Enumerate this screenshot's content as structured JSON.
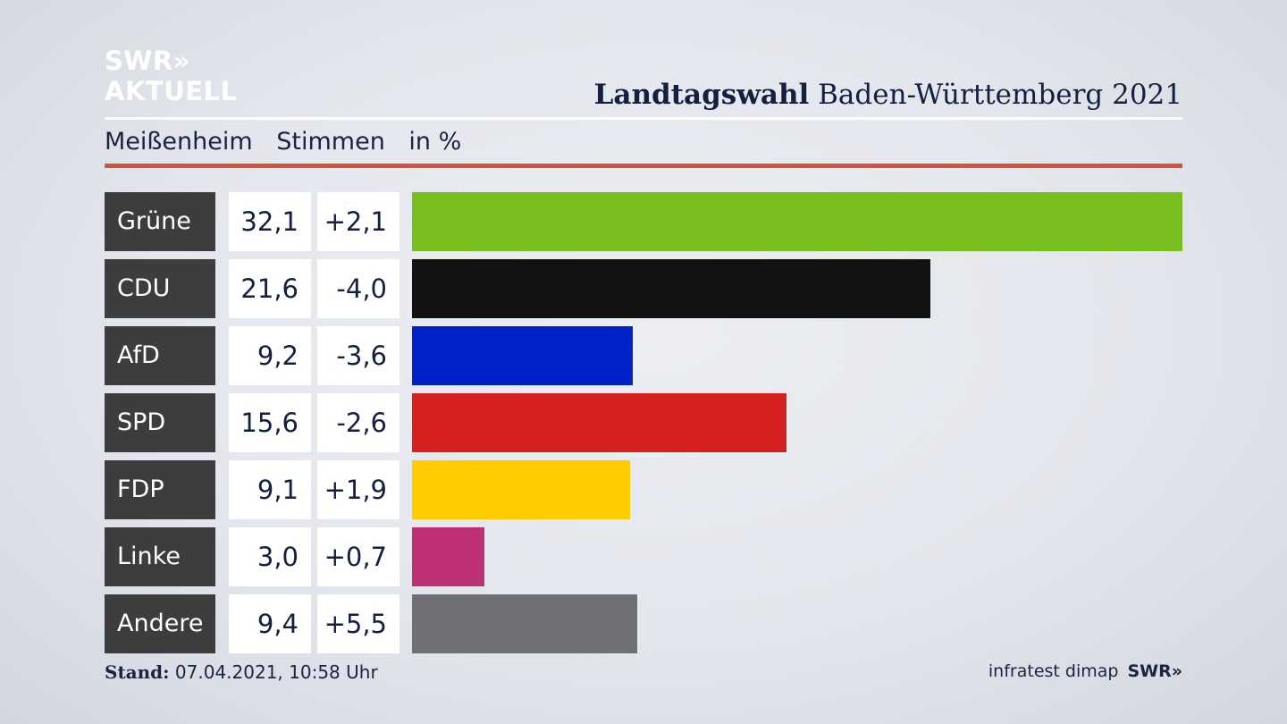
{
  "brand": {
    "line1": "SWR»",
    "line2": "AKTUELL"
  },
  "headline": {
    "bold": "Landtagswahl",
    "rest": " Baden-Württemberg 2021"
  },
  "subheader": {
    "place": "Meißenheim",
    "measure": "Stimmen",
    "unit": "in %"
  },
  "chart_data": {
    "type": "bar",
    "orientation": "horizontal",
    "title": "Landtagswahl Baden-Württemberg 2021",
    "subtitle": "Meißenheim Stimmen in %",
    "categories": [
      "Grüne",
      "CDU",
      "AfD",
      "SPD",
      "FDP",
      "Linke",
      "Andere"
    ],
    "values": [
      32.1,
      21.6,
      9.2,
      15.6,
      9.1,
      3.0,
      9.4
    ],
    "value_labels": [
      "32,1",
      "21,6",
      "9,2",
      "15,6",
      "9,1",
      "3,0",
      "9,4"
    ],
    "change_labels": [
      "+2,1",
      "-4,0",
      "-3,6",
      "-2,6",
      "+1,9",
      "+0,7",
      "+5,5"
    ],
    "changes": [
      2.1,
      -4.0,
      -3.6,
      -2.6,
      1.9,
      0.7,
      5.5
    ],
    "colors": [
      "#78be1e",
      "#121212",
      "#0021c8",
      "#d61f1f",
      "#ffcc00",
      "#be3075",
      "#6f7073"
    ],
    "xlim": [
      0,
      32.1
    ]
  },
  "footer": {
    "stand_label": "Stand:",
    "stand_value": " 07.04.2021, 10:58 Uhr",
    "source": "infratest dimap",
    "source_brand": "SWR»"
  }
}
